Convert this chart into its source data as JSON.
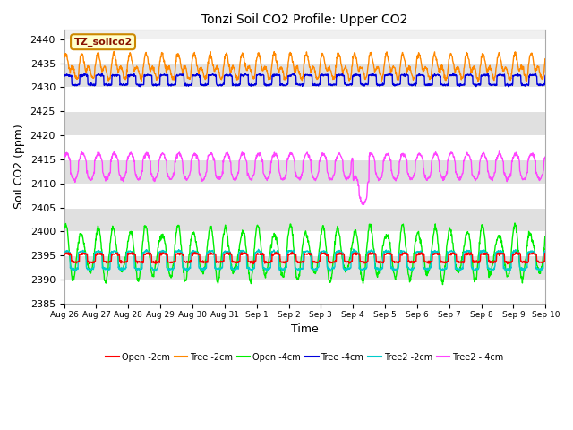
{
  "title": "Tonzi Soil CO2 Profile: Upper CO2",
  "xlabel": "Time",
  "ylabel": "Soil CO2 (ppm)",
  "ylim": [
    2385,
    2442
  ],
  "yticks": [
    2385,
    2390,
    2395,
    2400,
    2405,
    2410,
    2415,
    2420,
    2425,
    2430,
    2435,
    2440
  ],
  "legend_label": "TZ_soilco2",
  "legend_bg": "#ffffcc",
  "legend_border": "#cc8800",
  "legend_text_color": "#881100",
  "colors": {
    "open_2cm": "#ff0000",
    "tree_2cm": "#ff8800",
    "open_4cm": "#00ee00",
    "tree_4cm": "#0000dd",
    "tree2_2cm": "#00cccc",
    "tree2_4cm": "#ff44ff"
  },
  "series_labels": {
    "open_2cm": "Open -2cm",
    "tree_2cm": "Tree -2cm",
    "open_4cm": "Open -4cm",
    "tree_4cm": "Tree -4cm",
    "tree2_2cm": "Tree2 -2cm",
    "tree2_4cm": "Tree2 - 4cm"
  },
  "xtick_labels": [
    "Aug 26",
    "Aug 27",
    "Aug 28",
    "Aug 29",
    "Aug 30",
    "Aug 31",
    "Sep 1",
    "Sep 2",
    "Sep 3",
    "Sep 4",
    "Sep 5",
    "Sep 6",
    "Sep 7",
    "Sep 8",
    "Sep 9",
    "Sep 10"
  ],
  "plot_bg_color": "#f0f0f0",
  "alt_band_color": "#e0e0e0",
  "n_points": 1500,
  "n_days": 15
}
